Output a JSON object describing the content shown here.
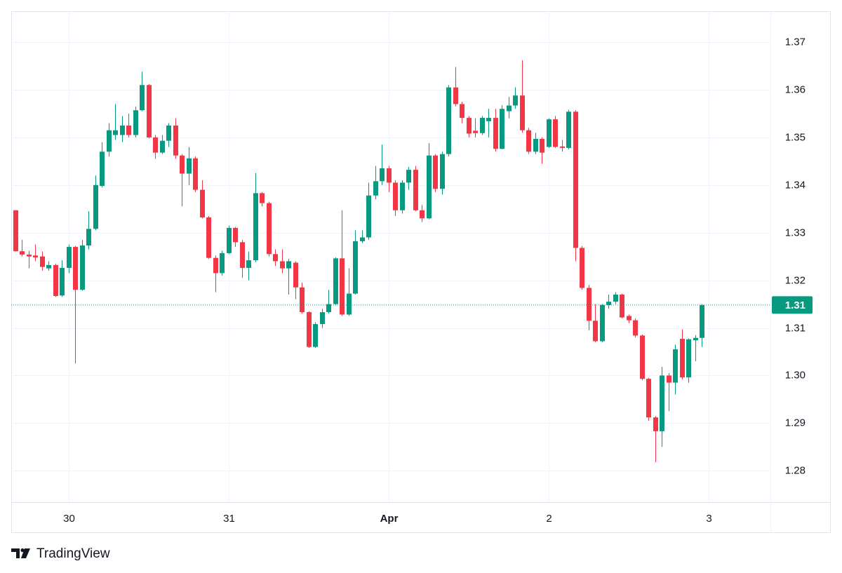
{
  "chart_data": {
    "type": "candlestick",
    "up_color": "#089981",
    "down_color": "#f23645",
    "grid": true,
    "open": [
      1.3347,
      1.3261,
      1.3254,
      1.3252,
      1.325,
      1.3225,
      1.3232,
      1.3168,
      1.3226,
      1.327,
      1.318,
      1.3273,
      1.3308,
      1.3398,
      1.347,
      1.3505,
      1.3505,
      1.3525,
      1.3505,
      1.3557,
      1.361,
      1.35,
      1.3468,
      1.3493,
      1.3525,
      1.3462,
      1.3424,
      1.3456,
      1.339,
      1.3332,
      1.3247,
      1.3215,
      1.3257,
      1.331,
      1.328,
      1.3226,
      1.3242,
      1.3383,
      1.3362,
      1.3255,
      1.324,
      1.3225,
      1.3237,
      1.3185,
      1.3133,
      1.306,
      1.3108,
      1.3133,
      1.315,
      1.3246,
      1.3128,
      1.3172,
      1.3282,
      1.329,
      1.3378,
      1.3408,
      1.3435,
      1.3405,
      1.3347,
      1.3405,
      1.3432,
      1.3347,
      1.333,
      1.3462,
      1.3392,
      1.3465,
      1.3605,
      1.357,
      1.3541,
      1.3514,
      1.3509,
      1.3534,
      1.3541,
      1.3476,
      1.3555,
      1.3567,
      1.3588,
      1.3515,
      1.347,
      1.3497,
      1.348,
      1.3538,
      1.3481,
      1.3478,
      1.3554,
      1.3268,
      1.3184,
      1.3115,
      1.3072,
      1.3148,
      1.3155,
      1.317,
      1.3125,
      1.3116,
      1.3084,
      1.2993,
      1.2912,
      1.2883,
      1.3,
      1.2985,
      1.3077,
      1.2996,
      1.3074,
      1.3079
    ],
    "high": [
      1.3347,
      1.3285,
      1.3262,
      1.3275,
      1.326,
      1.324,
      1.3235,
      1.3242,
      1.3275,
      1.3272,
      1.3285,
      1.3345,
      1.342,
      1.349,
      1.353,
      1.357,
      1.3545,
      1.355,
      1.3565,
      1.3638,
      1.3612,
      1.3505,
      1.3505,
      1.353,
      1.354,
      1.3465,
      1.348,
      1.346,
      1.341,
      1.3335,
      1.3252,
      1.3262,
      1.3315,
      1.3312,
      1.3285,
      1.326,
      1.3425,
      1.3385,
      1.3365,
      1.3265,
      1.3265,
      1.3245,
      1.324,
      1.3195,
      1.3135,
      1.3112,
      1.314,
      1.318,
      1.3248,
      1.3347,
      1.3225,
      1.3305,
      1.3305,
      1.3405,
      1.344,
      1.3485,
      1.344,
      1.341,
      1.341,
      1.3438,
      1.344,
      1.3358,
      1.3488,
      1.3465,
      1.347,
      1.361,
      1.3648,
      1.3575,
      1.3545,
      1.354,
      1.3545,
      1.356,
      1.356,
      1.3568,
      1.3585,
      1.3605,
      1.3662,
      1.352,
      1.351,
      1.35,
      1.354,
      1.3545,
      1.3495,
      1.3558,
      1.3557,
      1.3272,
      1.319,
      1.315,
      1.315,
      1.317,
      1.3175,
      1.3172,
      1.3128,
      1.312,
      1.3086,
      1.2995,
      1.2915,
      1.3018,
      1.3005,
      1.3065,
      1.3097,
      1.3078,
      1.3085,
      1.315
    ],
    "low": [
      1.326,
      1.325,
      1.3225,
      1.324,
      1.322,
      1.322,
      1.3165,
      1.3165,
      1.3215,
      1.3025,
      1.3178,
      1.3265,
      1.3305,
      1.3395,
      1.346,
      1.3495,
      1.349,
      1.35,
      1.35,
      1.3555,
      1.3498,
      1.3455,
      1.3465,
      1.348,
      1.3455,
      1.3355,
      1.34,
      1.3385,
      1.333,
      1.3245,
      1.3175,
      1.321,
      1.3255,
      1.327,
      1.3205,
      1.32,
      1.3238,
      1.3355,
      1.325,
      1.323,
      1.3215,
      1.317,
      1.316,
      1.313,
      1.3058,
      1.3058,
      1.31,
      1.313,
      1.3148,
      1.3125,
      1.3125,
      1.317,
      1.3278,
      1.3285,
      1.337,
      1.34,
      1.3385,
      1.3335,
      1.334,
      1.339,
      1.3345,
      1.3322,
      1.3328,
      1.3385,
      1.338,
      1.346,
      1.3565,
      1.353,
      1.35,
      1.35,
      1.3505,
      1.35,
      1.347,
      1.3475,
      1.354,
      1.356,
      1.351,
      1.3465,
      1.3465,
      1.3445,
      1.3478,
      1.3478,
      1.347,
      1.3475,
      1.324,
      1.318,
      1.3095,
      1.307,
      1.307,
      1.314,
      1.315,
      1.312,
      1.311,
      1.308,
      1.299,
      1.2905,
      1.2818,
      1.285,
      1.2925,
      1.296,
      1.2992,
      1.2985,
      1.303,
      1.306
    ],
    "close": [
      1.3261,
      1.3254,
      1.325,
      1.3248,
      1.3228,
      1.3232,
      1.3167,
      1.3226,
      1.327,
      1.318,
      1.3273,
      1.3308,
      1.34,
      1.347,
      1.3515,
      1.3515,
      1.3525,
      1.3505,
      1.3557,
      1.361,
      1.35,
      1.3468,
      1.3493,
      1.3525,
      1.3462,
      1.3424,
      1.3456,
      1.339,
      1.3332,
      1.3247,
      1.3215,
      1.3257,
      1.331,
      1.328,
      1.3226,
      1.3242,
      1.3383,
      1.3362,
      1.3255,
      1.324,
      1.3225,
      1.324,
      1.3185,
      1.3133,
      1.306,
      1.3108,
      1.3133,
      1.315,
      1.3246,
      1.3128,
      1.3172,
      1.3282,
      1.329,
      1.3378,
      1.3408,
      1.3435,
      1.3405,
      1.3347,
      1.3405,
      1.3432,
      1.3347,
      1.333,
      1.3462,
      1.3392,
      1.3465,
      1.3605,
      1.357,
      1.3541,
      1.3508,
      1.3509,
      1.3541,
      1.3541,
      1.3476,
      1.356,
      1.3567,
      1.3588,
      1.3515,
      1.347,
      1.3497,
      1.3468,
      1.3538,
      1.348,
      1.3478,
      1.3554,
      1.3268,
      1.3184,
      1.3115,
      1.3072,
      1.3148,
      1.3155,
      1.317,
      1.3122,
      1.3116,
      1.3084,
      1.2993,
      1.2912,
      1.2883,
      1.3,
      1.2985,
      1.3055,
      1.2996,
      1.3076,
      1.3079,
      1.3148
    ],
    "last_value_label": "1.31",
    "xlim": [
      -0.63,
      113.3
    ],
    "xticks": [
      {
        "value": 8,
        "label": "30"
      },
      {
        "value": 32,
        "label": "31"
      },
      {
        "value": 56,
        "label": "Apr"
      },
      {
        "value": 80,
        "label": "2"
      },
      {
        "value": 104,
        "label": "3"
      }
    ],
    "ylim": [
      1.2734,
      1.3765
    ],
    "yticks": [
      1.28,
      1.29,
      {
        "value": 1.3,
        "label": "1.30"
      },
      1.31,
      1.32,
      1.33,
      1.34,
      1.35,
      1.36,
      1.37
    ]
  },
  "brand": "TradingView"
}
